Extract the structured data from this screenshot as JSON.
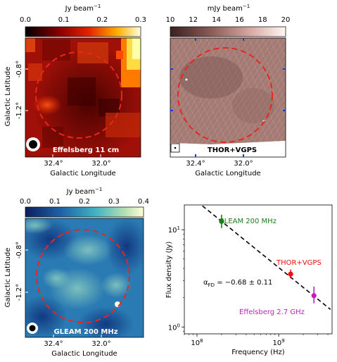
{
  "panels": {
    "a": {
      "cbar_label": "Jy beam",
      "cbar_label_sup": "−1",
      "cbar_ticks": [
        "0.0",
        "0.1",
        "0.2",
        "0.3"
      ],
      "ylabel": "Galactic Latitude",
      "xlabel": "Galactic Longitude",
      "yticks": [
        "-0.8°",
        "-1.2°"
      ],
      "xticks": [
        "32.4°",
        "32.0°"
      ],
      "survey_label": "Effelsberg 11 cm",
      "colormap": "red-yellow (hot)"
    },
    "b": {
      "cbar_label": "mJy beam",
      "cbar_label_sup": "−1",
      "cbar_ticks": [
        "10",
        "12",
        "14",
        "16",
        "18",
        "20"
      ],
      "xlabel": "Galactic Longitude",
      "xticks": [
        "32.4°",
        "32.0°"
      ],
      "survey_label": "THOR+VGPS",
      "colormap": "brown-pink"
    },
    "c": {
      "cbar_label": "Jy beam",
      "cbar_label_sup": "−1",
      "cbar_ticks": [
        "0.0",
        "0.1",
        "0.2",
        "0.3",
        "0.4"
      ],
      "ylabel": "Galactic Latitude",
      "xlabel": "Galactic Longitude",
      "yticks": [
        "-0.8°",
        "-1.2°"
      ],
      "xticks": [
        "32.4°",
        "32.0°"
      ],
      "survey_label": "GLEAM 200 MHz",
      "colormap": "yellow-green-blue"
    }
  },
  "colors": {
    "circle": "#e8261e",
    "gleam": "#1a7f1a",
    "thor": "#ee1111",
    "effelsberg": "#c01ec0"
  },
  "chart_data": {
    "type": "scatter",
    "xlabel": "Frequency (Hz)",
    "ylabel": "Flux density (Jy)",
    "xscale": "log",
    "yscale": "log",
    "xlim": [
      70000000,
      4500000000
    ],
    "ylim": [
      0.85,
      18
    ],
    "xtick_labels": [
      "10",
      "10"
    ],
    "xtick_sups": [
      "8",
      "9"
    ],
    "ytick_labels": [
      "10",
      "10"
    ],
    "ytick_sups": [
      "0",
      "1"
    ],
    "annotation": "α",
    "annotation_sub": "FD",
    "annotation_rest": " = −0.68 ± 0.11",
    "fit": {
      "alpha": -0.68,
      "x0": 200000000,
      "y0": 12.2,
      "x_range": [
        100000000,
        4300000000
      ],
      "style": "dashed"
    },
    "series": [
      {
        "name": "GLEAM 200 MHz",
        "x": 200000000,
        "y": 12.2,
        "yerr": [
          1.8,
          2.1
        ],
        "color": "#1a7f1a"
      },
      {
        "name": "THOR+VGPS",
        "x": 1400000000,
        "y": 3.5,
        "yerr": [
          0.35,
          0.4
        ],
        "color": "#ee1111"
      },
      {
        "name": "Effelsberg 2.7 GHz",
        "x": 2700000000,
        "y": 2.1,
        "yerr": [
          0.35,
          0.5
        ],
        "color": "#c01ec0"
      }
    ]
  }
}
